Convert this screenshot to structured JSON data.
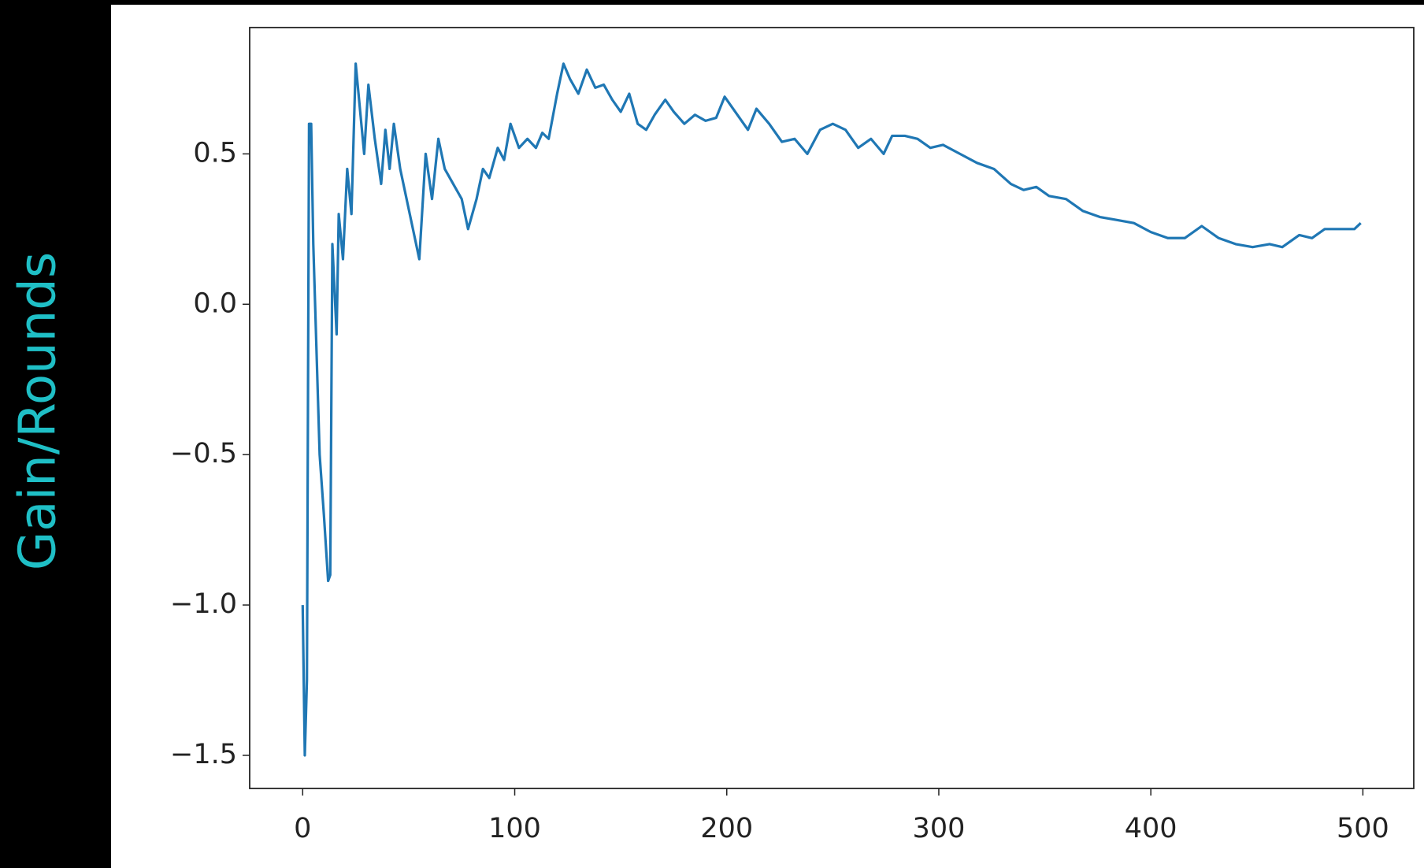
{
  "chart_data": {
    "type": "line",
    "y_label": "Gain/Rounds",
    "x": [
      0,
      1,
      2,
      3,
      4,
      5,
      8,
      10,
      12,
      13,
      14,
      16,
      17,
      19,
      21,
      23,
      25,
      27,
      29,
      31,
      34,
      37,
      39,
      41,
      43,
      46,
      49,
      52,
      55,
      58,
      61,
      64,
      67,
      71,
      75,
      78,
      82,
      85,
      88,
      92,
      95,
      98,
      102,
      106,
      110,
      113,
      116,
      120,
      123,
      126,
      130,
      134,
      138,
      142,
      146,
      150,
      154,
      158,
      162,
      166,
      171,
      175,
      180,
      185,
      190,
      195,
      199,
      204,
      210,
      214,
      220,
      226,
      232,
      238,
      244,
      250,
      256,
      262,
      268,
      274,
      278,
      284,
      290,
      296,
      302,
      310,
      318,
      326,
      334,
      340,
      346,
      352,
      360,
      368,
      376,
      384,
      392,
      400,
      408,
      416,
      424,
      432,
      440,
      448,
      456,
      462,
      470,
      476,
      482,
      490,
      496,
      499
    ],
    "series": [
      {
        "color": "#1f77b4",
        "values": [
          -1.0,
          -1.5,
          -1.25,
          0.6,
          0.6,
          0.2,
          -0.5,
          -0.7,
          -0.92,
          -0.9,
          0.2,
          -0.1,
          0.3,
          0.15,
          0.45,
          0.3,
          0.8,
          0.65,
          0.5,
          0.73,
          0.55,
          0.4,
          0.58,
          0.45,
          0.6,
          0.45,
          0.35,
          0.25,
          0.15,
          0.5,
          0.35,
          0.55,
          0.45,
          0.4,
          0.35,
          0.25,
          0.35,
          0.45,
          0.42,
          0.52,
          0.48,
          0.6,
          0.52,
          0.55,
          0.52,
          0.57,
          0.55,
          0.7,
          0.8,
          0.75,
          0.7,
          0.78,
          0.72,
          0.73,
          0.68,
          0.64,
          0.7,
          0.6,
          0.58,
          0.63,
          0.68,
          0.64,
          0.6,
          0.63,
          0.61,
          0.62,
          0.69,
          0.64,
          0.58,
          0.65,
          0.6,
          0.54,
          0.55,
          0.5,
          0.58,
          0.6,
          0.58,
          0.52,
          0.55,
          0.5,
          0.56,
          0.56,
          0.55,
          0.52,
          0.53,
          0.5,
          0.47,
          0.45,
          0.4,
          0.38,
          0.39,
          0.36,
          0.35,
          0.31,
          0.29,
          0.28,
          0.27,
          0.24,
          0.22,
          0.22,
          0.26,
          0.22,
          0.2,
          0.19,
          0.2,
          0.19,
          0.23,
          0.22,
          0.25,
          0.25,
          0.25,
          0.27
        ]
      }
    ],
    "xlim": [
      -25,
      524
    ],
    "ylim": [
      -1.61,
      0.92
    ],
    "xticks": [
      0,
      100,
      200,
      300,
      400,
      500
    ],
    "yticks": [
      {
        "value": -1.5,
        "label": "−1.5"
      },
      {
        "value": -1.0,
        "label": "−1.0"
      },
      {
        "value": -0.5,
        "label": "−0.5"
      },
      {
        "value": 0.0,
        "label": "0.0"
      },
      0.5
    ]
  }
}
